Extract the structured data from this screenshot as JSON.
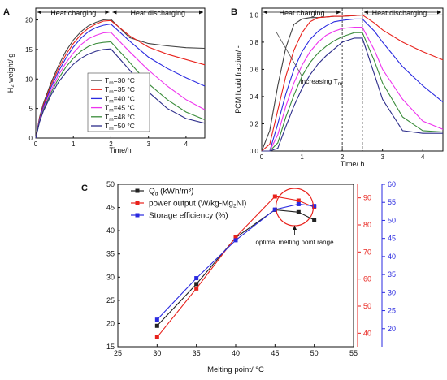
{
  "figure": {
    "panels": [
      "A",
      "B",
      "C"
    ]
  },
  "chart_data": [
    {
      "panel": "A",
      "type": "line",
      "xlabel": "Time/h",
      "ylabel": "H₂ weight/ g",
      "xlim": [
        0,
        4.5
      ],
      "ylim": [
        0,
        22
      ],
      "xticks": [
        0,
        1,
        2,
        3,
        4
      ],
      "yticks": [
        0,
        5,
        10,
        15,
        20
      ],
      "grid": false,
      "legend": {
        "position": "center-right"
      },
      "phase_divider_x": 2.0,
      "phases": [
        {
          "label": "Heat charging",
          "x_start": 0,
          "x_end": 2.0
        },
        {
          "label": "Heat discharging",
          "x_start": 2.0,
          "x_end": 4.5
        }
      ],
      "x": [
        0,
        0.1,
        0.2,
        0.4,
        0.6,
        0.8,
        1.0,
        1.2,
        1.4,
        1.6,
        1.8,
        2.0,
        2.5,
        3.0,
        3.5,
        4.0,
        4.5
      ],
      "series": [
        {
          "name": "Tm=30 °C",
          "name_parts": [
            "T",
            "m",
            "=30 °C"
          ],
          "color": "#404040",
          "values": [
            0,
            3.5,
            5.8,
            9.3,
            12.2,
            14.7,
            16.6,
            18.0,
            19.0,
            19.6,
            20.0,
            20.1,
            17.0,
            16.0,
            15.6,
            15.3,
            15.2
          ]
        },
        {
          "name": "Tm=35 °C",
          "name_parts": [
            "T",
            "m",
            "=35 °C"
          ],
          "color": "#e8221c",
          "values": [
            0,
            3.3,
            5.5,
            8.9,
            11.7,
            14.1,
            16.0,
            17.5,
            18.6,
            19.3,
            19.8,
            19.9,
            17.3,
            15.4,
            14.2,
            13.3,
            12.4
          ]
        },
        {
          "name": "Tm=40 °C",
          "name_parts": [
            "T",
            "m",
            "=40 °C"
          ],
          "color": "#2a2ae0",
          "values": [
            0,
            3.1,
            5.2,
            8.5,
            11.2,
            13.5,
            15.4,
            16.9,
            18.0,
            18.7,
            19.1,
            19.3,
            16.4,
            13.7,
            11.8,
            10.2,
            8.8
          ]
        },
        {
          "name": "Tm=45 °C",
          "name_parts": [
            "T",
            "m",
            "=45 °C"
          ],
          "color": "#ee33ee",
          "values": [
            0,
            2.9,
            4.9,
            8.0,
            10.6,
            12.7,
            14.4,
            15.8,
            16.8,
            17.4,
            17.8,
            17.9,
            14.6,
            11.5,
            8.8,
            6.5,
            4.8
          ]
        },
        {
          "name": "Tm=48 °C",
          "name_parts": [
            "T",
            "m",
            "=48 °C"
          ],
          "color": "#3a8c3a",
          "values": [
            0,
            2.8,
            4.7,
            7.6,
            10.0,
            12.0,
            13.5,
            14.7,
            15.5,
            16.0,
            16.2,
            16.3,
            12.8,
            9.2,
            6.5,
            4.4,
            3.1
          ]
        },
        {
          "name": "Tm=50 °C",
          "name_parts": [
            "T",
            "m",
            "=50 °C"
          ],
          "color": "#2c2c8a",
          "values": [
            0,
            2.7,
            4.5,
            7.2,
            9.4,
            11.1,
            12.5,
            13.5,
            14.2,
            14.7,
            15.0,
            15.1,
            11.5,
            7.8,
            5.0,
            3.3,
            2.5
          ]
        }
      ]
    },
    {
      "panel": "B",
      "type": "line",
      "xlabel": "Time/ h",
      "ylabel": "PCM liquid fraction/ -",
      "xlim": [
        0,
        4.5
      ],
      "ylim": [
        0,
        1.05
      ],
      "xticks": [
        0,
        1,
        2,
        3,
        4
      ],
      "yticks": [
        0.0,
        0.2,
        0.4,
        0.6,
        0.8,
        1.0
      ],
      "grid": false,
      "phase_dividers_x": [
        2.0,
        2.5
      ],
      "phases": [
        {
          "label": "Heat charging",
          "x_start": 0,
          "x_end": 2.0
        },
        {
          "label": "Heat discharging",
          "x_start": 2.5,
          "x_end": 4.5
        }
      ],
      "annotation": {
        "text": "increasing T",
        "sub": "m",
        "arrow_from": [
          1.0,
          0.55
        ],
        "arrow_to": [
          0.35,
          0.88
        ]
      },
      "x": [
        0,
        0.2,
        0.4,
        0.6,
        0.8,
        1.0,
        1.2,
        1.4,
        1.6,
        1.8,
        2.0,
        2.3,
        2.5,
        2.8,
        3.0,
        3.5,
        4.0,
        4.5
      ],
      "series": [
        {
          "name": "Tm=30 °C",
          "color": "#404040",
          "values": [
            0,
            0.15,
            0.48,
            0.76,
            0.93,
            0.97,
            0.98,
            0.98,
            0.985,
            0.99,
            0.99,
            0.995,
            1.0,
            1.0,
            1.0,
            1.0,
            1.0,
            1.0
          ]
        },
        {
          "name": "Tm=35 °C",
          "color": "#e8221c",
          "values": [
            0,
            0.05,
            0.3,
            0.55,
            0.74,
            0.87,
            0.95,
            0.98,
            0.985,
            0.99,
            0.99,
            0.995,
            1.0,
            0.94,
            0.89,
            0.8,
            0.73,
            0.67
          ]
        },
        {
          "name": "Tm=40 °C",
          "color": "#2a2ae0",
          "values": [
            0,
            0.0,
            0.2,
            0.42,
            0.6,
            0.73,
            0.82,
            0.88,
            0.92,
            0.95,
            0.96,
            0.97,
            0.97,
            0.88,
            0.8,
            0.62,
            0.48,
            0.36
          ]
        },
        {
          "name": "Tm=45 °C",
          "color": "#ee33ee",
          "values": [
            0,
            0.0,
            0.12,
            0.33,
            0.5,
            0.63,
            0.73,
            0.8,
            0.85,
            0.88,
            0.9,
            0.91,
            0.91,
            0.74,
            0.6,
            0.38,
            0.22,
            0.16
          ]
        },
        {
          "name": "Tm=48 °C",
          "color": "#3a8c3a",
          "values": [
            0,
            0.0,
            0.06,
            0.25,
            0.41,
            0.55,
            0.65,
            0.72,
            0.77,
            0.81,
            0.84,
            0.87,
            0.87,
            0.66,
            0.5,
            0.25,
            0.15,
            0.14
          ]
        },
        {
          "name": "Tm=50 °C",
          "color": "#2c2c8a",
          "values": [
            0,
            0.0,
            0.02,
            0.18,
            0.33,
            0.46,
            0.56,
            0.64,
            0.7,
            0.75,
            0.8,
            0.83,
            0.83,
            0.56,
            0.38,
            0.15,
            0.13,
            0.13
          ]
        }
      ]
    },
    {
      "panel": "C",
      "type": "line",
      "xlabel": "Melting point/ °C",
      "xlim": [
        25,
        55
      ],
      "xticks": [
        25,
        30,
        35,
        40,
        45,
        50,
        55
      ],
      "grid": false,
      "legend": {
        "position": "top-left"
      },
      "axes": {
        "left": {
          "ylim": [
            15,
            50
          ],
          "ticks": [
            15,
            20,
            25,
            30,
            35,
            40,
            45,
            50
          ],
          "color": "#222222"
        },
        "right1": {
          "ylim": [
            35,
            95
          ],
          "ticks": [
            40,
            50,
            60,
            70,
            80,
            90
          ],
          "color": "#e8221c"
        },
        "right2": {
          "ylim": [
            15,
            60
          ],
          "ticks": [
            20,
            25,
            30,
            35,
            40,
            45,
            50,
            55,
            60
          ],
          "color": "#2a2ae0"
        }
      },
      "annotation": {
        "text": "optimal melting point range",
        "circle_center": [
          47.5,
          45.1
        ]
      },
      "x": [
        30,
        35,
        40,
        45,
        48,
        50
      ],
      "series": [
        {
          "name": "Qd (kWh/m³)",
          "name_parts": [
            "Q",
            "d",
            " (kWh/m³)"
          ],
          "axis": "left",
          "color": "#222222",
          "marker": "square",
          "values": [
            19.5,
            28.5,
            38.5,
            44.5,
            44.0,
            42.3
          ]
        },
        {
          "name": "power output (W/kg-Mg2Ni)",
          "name_parts": [
            "power output (W/kg-Mg",
            "2",
            "Ni)"
          ],
          "axis": "right1",
          "color": "#e8221c",
          "marker": "square",
          "values": [
            38.5,
            56.5,
            75.5,
            90.5,
            89.0,
            86.5
          ]
        },
        {
          "name": "Storage efficiency (%)",
          "name_parts": [
            "Storage efficiency (%)",
            "",
            ""
          ],
          "axis": "right2",
          "color": "#2a2ae0",
          "marker": "square",
          "values": [
            22.5,
            34.0,
            44.5,
            53.0,
            54.5,
            54.0
          ]
        }
      ]
    }
  ]
}
